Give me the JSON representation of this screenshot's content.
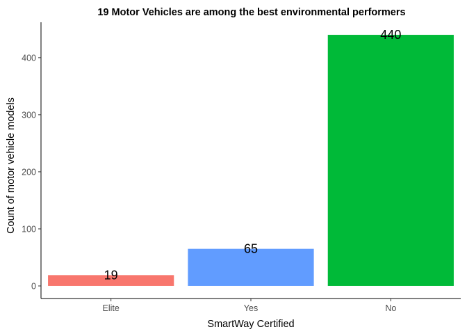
{
  "chart_data": {
    "type": "bar",
    "title": "19 Motor Vehicles are among the best environmental performers",
    "xlabel": "SmartWay Certified",
    "ylabel": "Count of motor vehicle models",
    "categories": [
      "Elite",
      "Yes",
      "No"
    ],
    "values": [
      19,
      65,
      440
    ],
    "data_labels": [
      "19",
      "65",
      "440"
    ],
    "colors": [
      "#F8766D",
      "#619CFF",
      "#00BA38"
    ],
    "y_ticks": [
      0,
      100,
      200,
      300,
      400
    ],
    "y_tick_labels": [
      "0",
      "100",
      "200",
      "300",
      "400"
    ],
    "ylim": [
      -22,
      462
    ],
    "grid": false,
    "legend": "none"
  }
}
